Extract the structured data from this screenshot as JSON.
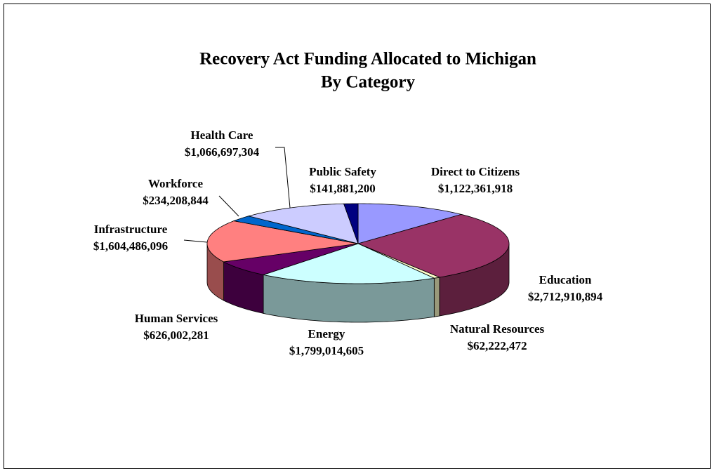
{
  "chart_data": {
    "type": "pie3d",
    "title": "Recovery Act Funding Allocated to Michigan",
    "subtitle": "By Category",
    "categories": [
      "Direct to Citizens",
      "Education",
      "Natural Resources",
      "Energy",
      "Human Services",
      "Infrastructure",
      "Workforce",
      "Health Care",
      "Public Safety"
    ],
    "values": [
      1122361918,
      2712910894,
      62222472,
      1799014605,
      626002281,
      1604486096,
      234208844,
      1066697304,
      141881200
    ],
    "value_labels": [
      "$1,122,361,918",
      "$2,712,910,894",
      "$62,222,472",
      "$1,799,014,605",
      "$626,002,281",
      "$1,604,486,096",
      "$234,208,844",
      "$1,066,697,304",
      "$141,881,200"
    ],
    "colors": [
      "#9999ff",
      "#993366",
      "#ffffcc",
      "#ccffff",
      "#660066",
      "#ff8080",
      "#0066cc",
      "#ccccff",
      "#000080"
    ],
    "legend": false
  }
}
